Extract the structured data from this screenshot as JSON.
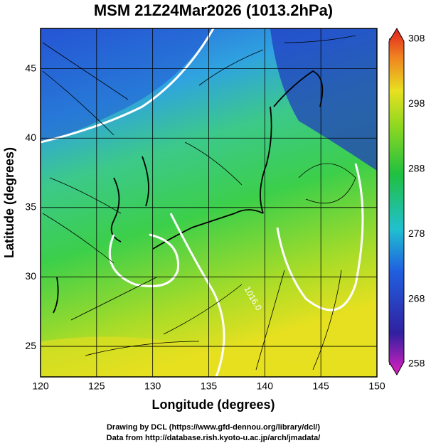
{
  "map": {
    "title": "MSM 21Z24Mar2026 (1013.2hPa)",
    "xlabel": "Longitude (degrees)",
    "ylabel": "Latitude  (degrees)",
    "xlim": [
      120,
      150
    ],
    "ylim": [
      22.8,
      47.9
    ],
    "xticks": [
      120,
      125,
      130,
      135,
      140,
      145,
      150
    ],
    "yticks": [
      25,
      30,
      35,
      40,
      45
    ],
    "colorbar": {
      "lim": [
        258,
        308
      ],
      "ticks": [
        258,
        268,
        278,
        288,
        298,
        308
      ]
    },
    "contour_labels": [
      "1016.0"
    ],
    "footer": [
      "Drawing by DCL (https://www.gfd-dennou.org/library/dcl/)",
      "Data from http://database.rish.kyoto-u.ac.jp/arch/jmadata/"
    ]
  }
}
